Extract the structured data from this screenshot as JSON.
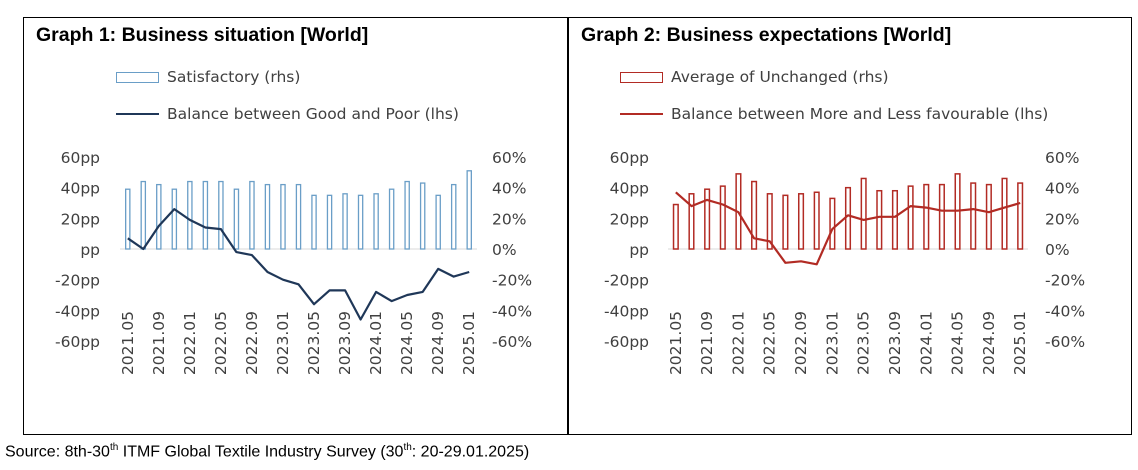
{
  "charts": [
    {
      "title": "Graph 1: Business situation [World]",
      "legend_bar": "Satisfactory (rhs)",
      "legend_line": "Balance between Good and Poor (lhs)",
      "bar_color": "#6a9ec7",
      "line_color": "#1f3758",
      "left_axis_ticks": [
        "60pp",
        "40pp",
        "20pp",
        "pp",
        "-20pp",
        "-40pp",
        "-60pp"
      ],
      "right_axis_ticks": [
        "60%",
        "40%",
        "20%",
        "0%",
        "-20%",
        "-40%",
        "-60%"
      ],
      "x_tick_labels": [
        "2021.05",
        "2021.09",
        "2022.01",
        "2022.05",
        "2022.09",
        "2023.01",
        "2023.05",
        "2023.09",
        "2024.01",
        "2024.05",
        "2024.09",
        "2025.01"
      ]
    },
    {
      "title": "Graph 2: Business expectations [World]",
      "legend_bar": "Average of Unchanged (rhs)",
      "legend_line": "Balance between More and Less favourable (lhs)",
      "bar_color": "#b22b24",
      "line_color": "#b22b24",
      "left_axis_ticks": [
        "60pp",
        "40pp",
        "20pp",
        "pp",
        "-20pp",
        "-40pp",
        "-60pp"
      ],
      "right_axis_ticks": [
        "60%",
        "40%",
        "20%",
        "0%",
        "-20%",
        "-40%",
        "-60%"
      ],
      "x_tick_labels": [
        "2021.05",
        "2021.09",
        "2022.01",
        "2022.05",
        "2022.09",
        "2023.01",
        "2023.05",
        "2023.09",
        "2024.01",
        "2024.05",
        "2024.09",
        "2025.01"
      ]
    }
  ],
  "source": {
    "prefix": "Source: 8th-30",
    "sup1": "th",
    "middle": " ITMF Global Textile Industry Survey (30",
    "sup2": "th",
    "suffix": ": 20-29.01.2025)"
  },
  "chart_data": [
    {
      "type": "bar",
      "title": "Graph 1: Business situation [World]",
      "x": [
        "2021.05",
        "2021.07",
        "2021.09",
        "2021.11",
        "2022.01",
        "2022.03",
        "2022.05",
        "2022.07",
        "2022.09",
        "2022.11",
        "2023.01",
        "2023.03",
        "2023.05",
        "2023.07",
        "2023.09",
        "2023.11",
        "2024.01",
        "2024.03",
        "2024.05",
        "2024.07",
        "2024.09",
        "2024.11",
        "2025.01"
      ],
      "series": [
        {
          "name": "Satisfactory (rhs)",
          "axis": "right",
          "kind": "bar",
          "values": [
            39,
            44,
            42,
            39,
            44,
            44,
            44,
            39,
            44,
            42,
            42,
            42,
            35,
            35,
            36,
            35,
            36,
            39,
            44,
            43,
            35,
            42,
            51
          ]
        },
        {
          "name": "Balance between Good and Poor (lhs)",
          "axis": "left",
          "kind": "line",
          "values": [
            7,
            0,
            15,
            26,
            19,
            14,
            13,
            -2,
            -4,
            -15,
            -20,
            -23,
            -36,
            -27,
            -27,
            -46,
            -28,
            -34,
            -30,
            -28,
            -13,
            -18,
            -15
          ]
        }
      ],
      "ylim_left": [
        -60,
        60
      ],
      "ylim_right": [
        -60,
        60
      ],
      "grid": false,
      "legend_position": "top-left"
    },
    {
      "type": "bar",
      "title": "Graph 2: Business expectations [World]",
      "x": [
        "2021.05",
        "2021.07",
        "2021.09",
        "2021.11",
        "2022.01",
        "2022.03",
        "2022.05",
        "2022.07",
        "2022.09",
        "2022.11",
        "2023.01",
        "2023.03",
        "2023.05",
        "2023.07",
        "2023.09",
        "2023.11",
        "2024.01",
        "2024.03",
        "2024.05",
        "2024.07",
        "2024.09",
        "2024.11",
        "2025.01"
      ],
      "series": [
        {
          "name": "Average of Unchanged (rhs)",
          "axis": "right",
          "kind": "bar",
          "values": [
            29,
            36,
            39,
            41,
            49,
            44,
            36,
            35,
            36,
            37,
            33,
            40,
            46,
            38,
            38,
            41,
            42,
            42,
            49,
            43,
            42,
            46,
            43
          ]
        },
        {
          "name": "Balance between More and Less favourable (lhs)",
          "axis": "left",
          "kind": "line",
          "values": [
            37,
            28,
            32,
            29,
            24,
            7,
            5,
            -9,
            -8,
            -10,
            13,
            22,
            19,
            21,
            21,
            28,
            27,
            25,
            25,
            26,
            24,
            27,
            30
          ]
        }
      ],
      "ylim_left": [
        -60,
        60
      ],
      "ylim_right": [
        -60,
        60
      ],
      "grid": false,
      "legend_position": "top-left"
    }
  ]
}
